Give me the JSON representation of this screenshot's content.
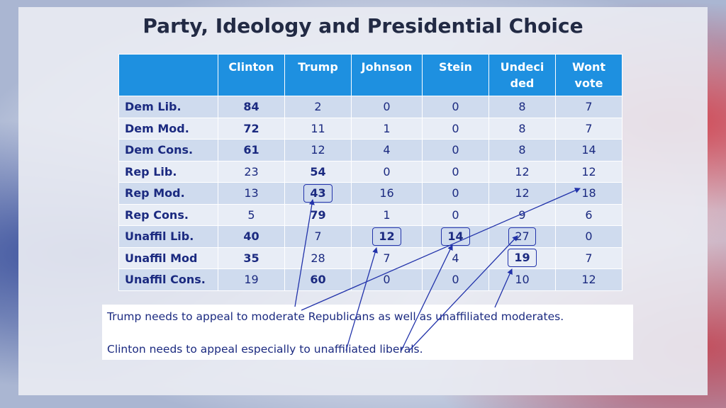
{
  "title": "Party, Ideology and Presidential Choice",
  "table": {
    "headers": [
      "",
      "Clinton",
      "Trump",
      "Johnson",
      "Stein",
      "Undeci\nded",
      "Wont\nvote"
    ],
    "rows": [
      {
        "label": "Dem Lib.",
        "values": [
          "84",
          "2",
          "0",
          "0",
          "8",
          "7"
        ]
      },
      {
        "label": "Dem Mod.",
        "values": [
          "72",
          "11",
          "1",
          "0",
          "8",
          "7"
        ]
      },
      {
        "label": "Dem Cons.",
        "values": [
          "61",
          "12",
          "4",
          "0",
          "8",
          "14"
        ]
      },
      {
        "label": "Rep Lib.",
        "values": [
          "23",
          "54",
          "0",
          "0",
          "12",
          "12"
        ]
      },
      {
        "label": "Rep Mod.",
        "values": [
          "13",
          "43",
          "16",
          "0",
          "12",
          "18"
        ]
      },
      {
        "label": "Rep Cons.",
        "values": [
          "5",
          "79",
          "1",
          "0",
          "9",
          "6"
        ]
      },
      {
        "label": "Unaffil Lib.",
        "values": [
          "40",
          "7",
          "12",
          "14",
          "27",
          "0"
        ]
      },
      {
        "label": "Unaffil Mod",
        "values": [
          "35",
          "28",
          "7",
          "4",
          "19",
          "7"
        ]
      },
      {
        "label": "Unaffil Cons.",
        "values": [
          "19",
          "60",
          "0",
          "0",
          "10",
          "12"
        ]
      }
    ]
  },
  "notes": [
    "Trump needs to appeal to moderate Republicans as well as unaffiliated moderates.",
    "Clinton needs to appeal especially to unaffiliated liberals."
  ],
  "colors": {
    "header_bg": "#1e90e0",
    "text": "#1b2a80",
    "row_dark": "#cfdbee",
    "row_light": "#e8edf6"
  }
}
